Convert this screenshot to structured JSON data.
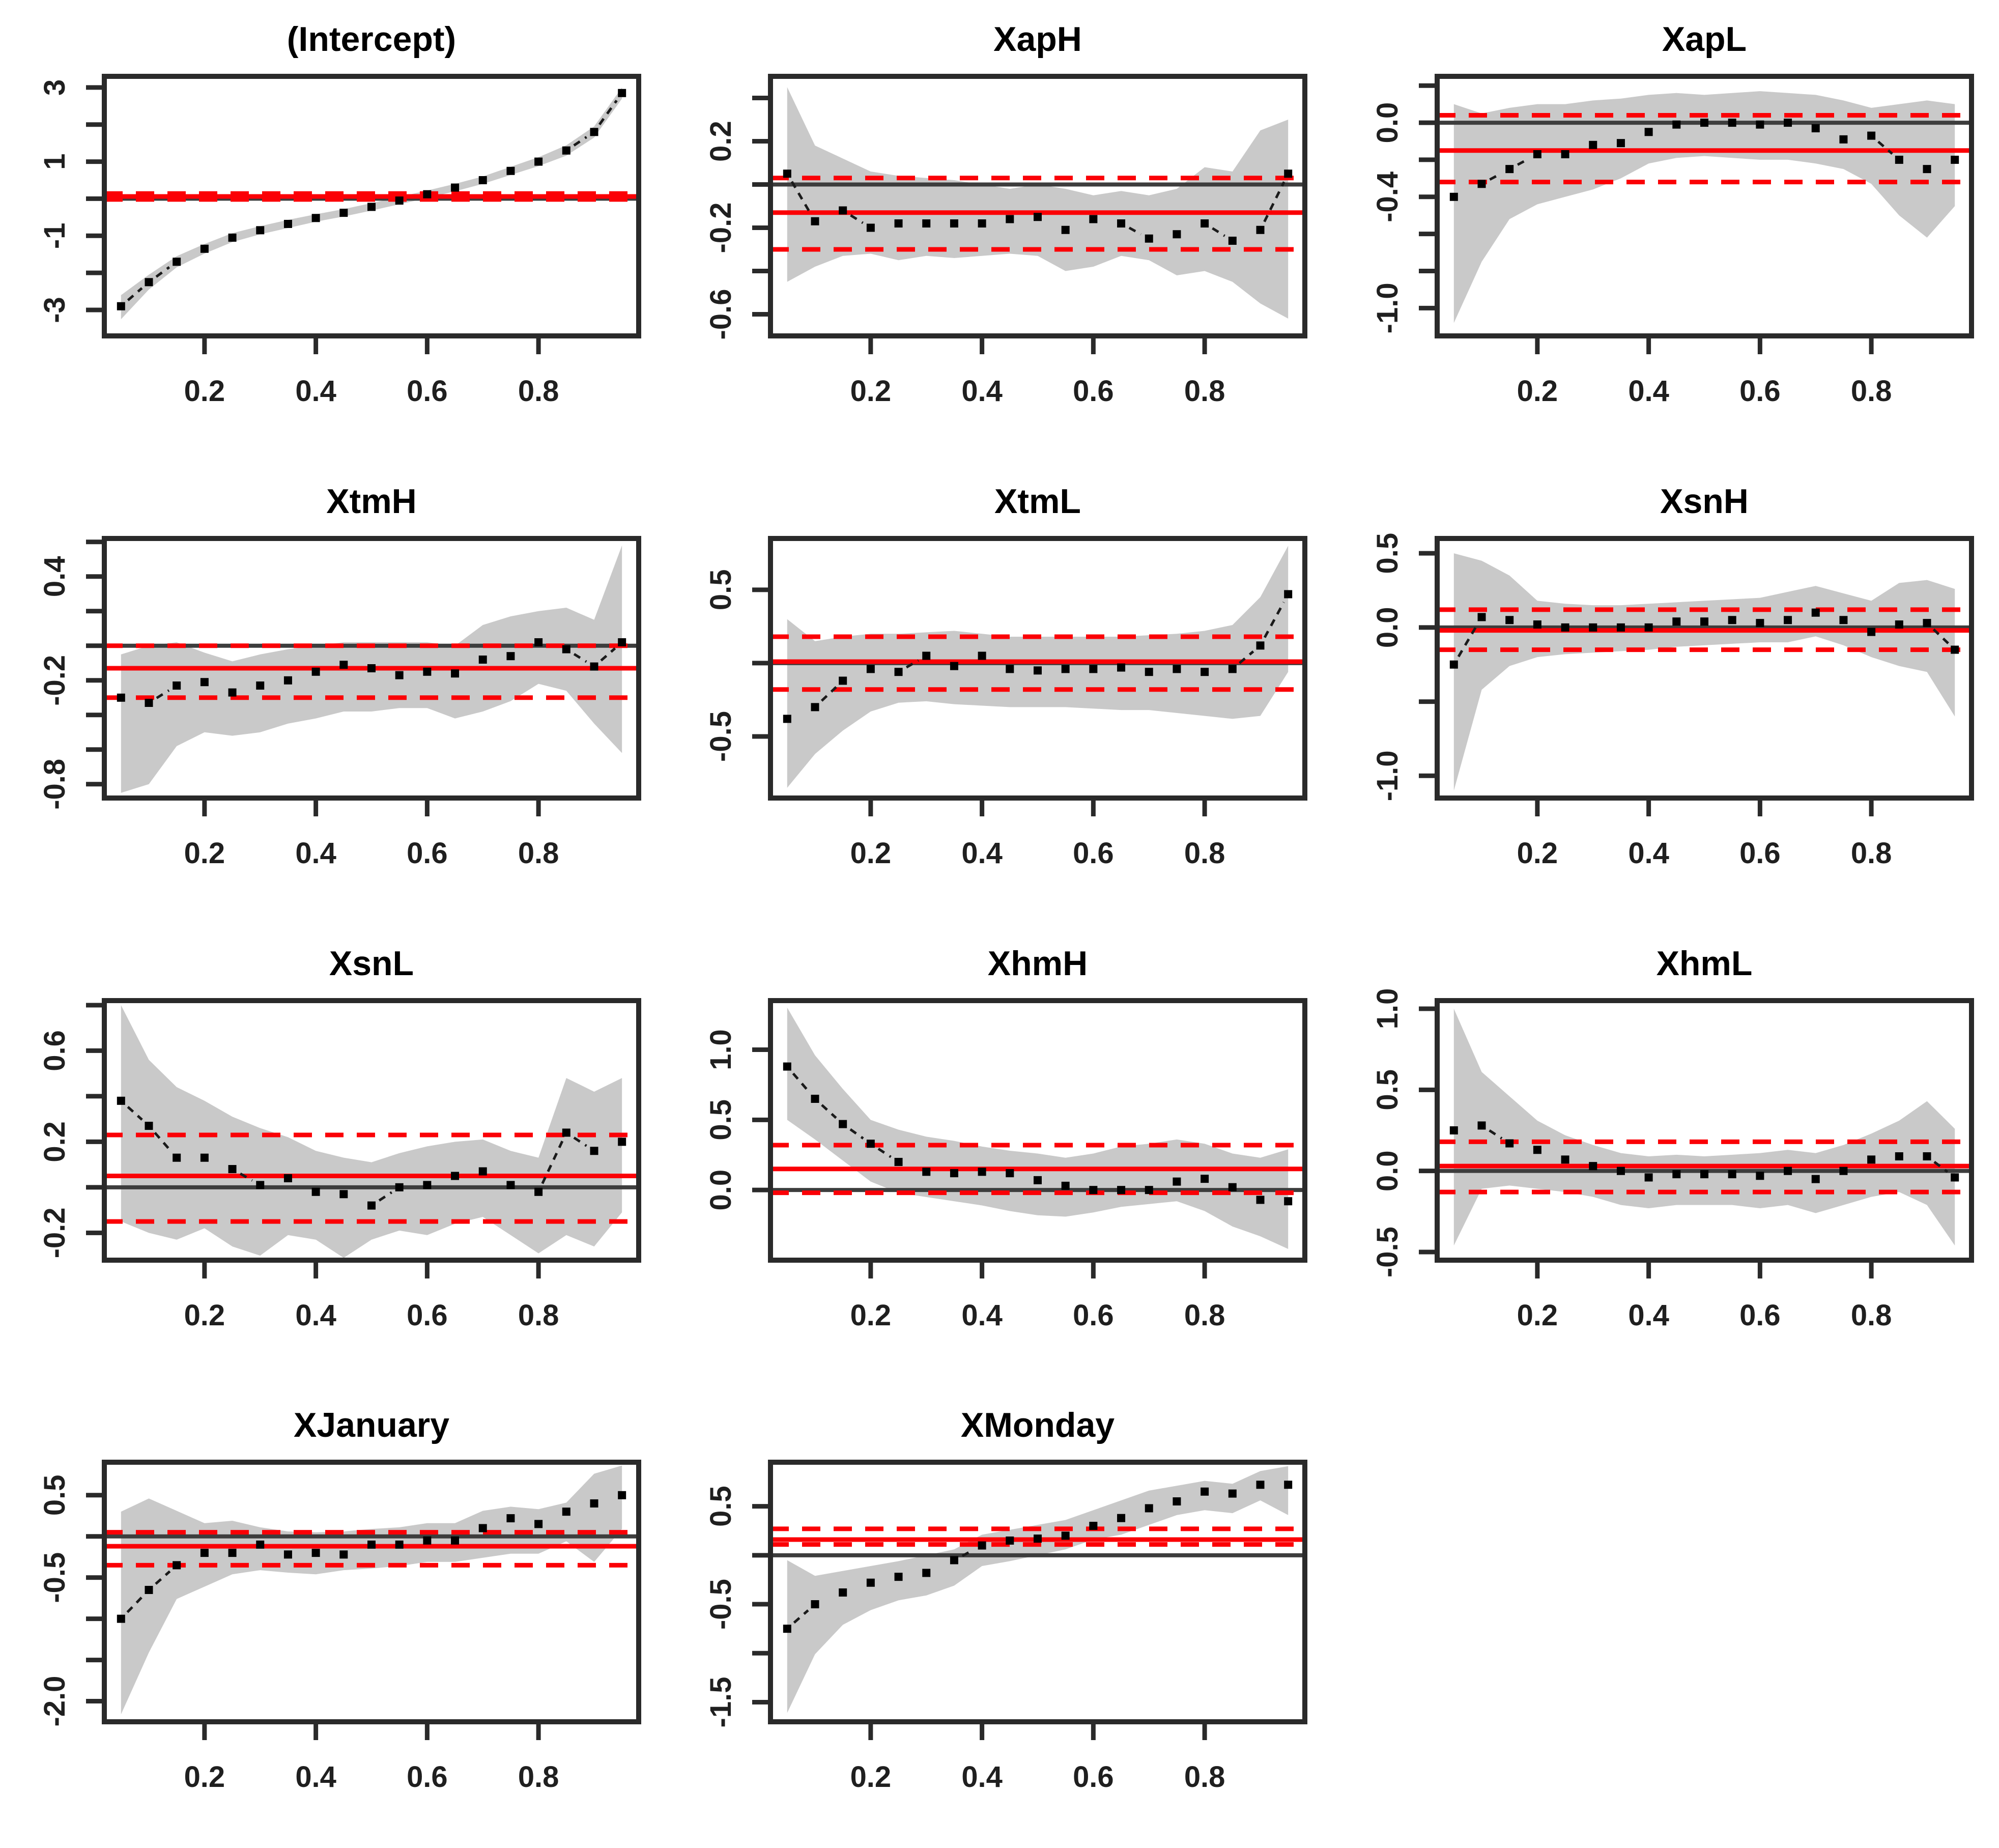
{
  "figure": {
    "kind": "quantile regression coefficient plots (R quantreg style)",
    "rows": 4,
    "cols": 3,
    "background": "#ffffff"
  },
  "styles": {
    "band_color": "#c9c9c9",
    "point_color": "#000000",
    "connector_color": "#1a1a1a",
    "ols_color": "#fb0006",
    "ci_color": "#fb0006",
    "zero_line_color": "#3d3d3d",
    "box_color": "#2a2a2a",
    "tick_color": "#2a2a2a",
    "label_color": "#1f1f1f",
    "title_color": "#000000"
  },
  "chart_data": {
    "type": "line",
    "description": "Grid of 11 quantile-regression coefficient estimate panels. Black square points = coefficient at each quantile tau (dashed black connector), gray polygon = confidence band, solid red = OLS estimate, dashed red = OLS confidence interval, dark gray line = zero reference.",
    "tau": [
      0.05,
      0.1,
      0.15,
      0.2,
      0.25,
      0.3,
      0.35,
      0.4,
      0.45,
      0.5,
      0.55,
      0.6,
      0.65,
      0.7,
      0.75,
      0.8,
      0.85,
      0.9,
      0.95
    ],
    "xlim": [
      0.02,
      0.98
    ],
    "x_ticks": [
      0.2,
      0.4,
      0.6,
      0.8
    ],
    "x_tick_labels": [
      "0.2",
      "0.4",
      "0.6",
      "0.8"
    ],
    "panels": [
      {
        "title": "(Intercept)",
        "ylim": [
          -3.7,
          3.3
        ],
        "y_ticks": [
          3,
          2,
          1,
          0,
          -1,
          -2,
          -3
        ],
        "y_labels": [
          {
            "v": 3,
            "t": "3"
          },
          {
            "v": 1,
            "t": "1"
          },
          {
            "v": -1,
            "t": "-1"
          },
          {
            "v": -3,
            "t": "-3"
          }
        ],
        "coef": [
          -2.9,
          -2.25,
          -1.7,
          -1.35,
          -1.05,
          -0.85,
          -0.68,
          -0.52,
          -0.38,
          -0.22,
          -0.05,
          0.12,
          0.3,
          0.5,
          0.75,
          1.0,
          1.3,
          1.8,
          2.85
        ],
        "band_upper": [
          -2.6,
          -2.05,
          -1.55,
          -1.22,
          -0.93,
          -0.74,
          -0.57,
          -0.42,
          -0.28,
          -0.12,
          0.05,
          0.22,
          0.4,
          0.6,
          0.86,
          1.12,
          1.44,
          1.95,
          3.0
        ],
        "band_lower": [
          -3.25,
          -2.45,
          -1.85,
          -1.48,
          -1.17,
          -0.96,
          -0.79,
          -0.62,
          -0.48,
          -0.32,
          -0.15,
          0.02,
          0.2,
          0.4,
          0.64,
          0.88,
          1.16,
          1.65,
          2.7
        ],
        "ols": 0.06,
        "ols_ci": [
          -0.02,
          0.14
        ],
        "zero": 0
      },
      {
        "title": "XapH",
        "ylim": [
          -0.7,
          0.5
        ],
        "y_ticks": [
          0.4,
          0.2,
          0,
          -0.2,
          -0.4,
          -0.6
        ],
        "y_labels": [
          {
            "v": 0.2,
            "t": "0.2"
          },
          {
            "v": -0.2,
            "t": "-0.2"
          },
          {
            "v": -0.6,
            "t": "-0.6"
          }
        ],
        "coef": [
          0.05,
          -0.17,
          -0.12,
          -0.2,
          -0.18,
          -0.18,
          -0.18,
          -0.18,
          -0.16,
          -0.15,
          -0.21,
          -0.16,
          -0.18,
          -0.25,
          -0.23,
          -0.18,
          -0.26,
          -0.21,
          0.05
        ],
        "band_upper": [
          0.45,
          0.18,
          0.12,
          0.06,
          0.04,
          0.03,
          0.02,
          0.0,
          -0.02,
          0.0,
          -0.02,
          -0.05,
          -0.03,
          -0.05,
          -0.02,
          0.08,
          0.06,
          0.25,
          0.3
        ],
        "band_lower": [
          -0.45,
          -0.38,
          -0.33,
          -0.32,
          -0.35,
          -0.33,
          -0.34,
          -0.33,
          -0.32,
          -0.33,
          -0.4,
          -0.38,
          -0.33,
          -0.35,
          -0.42,
          -0.4,
          -0.45,
          -0.55,
          -0.62
        ],
        "ols": -0.13,
        "ols_ci": [
          -0.3,
          0.03
        ],
        "zero": 0
      },
      {
        "title": "XapL",
        "ylim": [
          -1.15,
          0.25
        ],
        "y_ticks": [
          0.2,
          0,
          -0.2,
          -0.4,
          -0.6,
          -0.8,
          -1.0
        ],
        "y_labels": [
          {
            "v": 0,
            "t": "0.0"
          },
          {
            "v": -0.4,
            "t": "-0.4"
          },
          {
            "v": -1.0,
            "t": "-1.0"
          }
        ],
        "coef": [
          -0.4,
          -0.33,
          -0.25,
          -0.17,
          -0.17,
          -0.12,
          -0.11,
          -0.05,
          -0.01,
          0.0,
          0.0,
          -0.01,
          0.0,
          -0.03,
          -0.09,
          -0.07,
          -0.2,
          -0.25,
          -0.2
        ],
        "band_upper": [
          0.1,
          0.05,
          0.08,
          0.1,
          0.1,
          0.12,
          0.13,
          0.15,
          0.16,
          0.15,
          0.16,
          0.17,
          0.16,
          0.15,
          0.12,
          0.08,
          0.1,
          0.12,
          0.1
        ],
        "band_lower": [
          -1.08,
          -0.75,
          -0.52,
          -0.44,
          -0.4,
          -0.36,
          -0.3,
          -0.22,
          -0.19,
          -0.18,
          -0.19,
          -0.2,
          -0.2,
          -0.22,
          -0.25,
          -0.33,
          -0.5,
          -0.62,
          -0.45
        ],
        "ols": -0.15,
        "ols_ci": [
          -0.32,
          0.04
        ],
        "zero": 0
      },
      {
        "title": "XtmH",
        "ylim": [
          -0.88,
          0.62
        ],
        "y_ticks": [
          0.6,
          0.4,
          0.2,
          0,
          -0.2,
          -0.4,
          -0.6,
          -0.8
        ],
        "y_labels": [
          {
            "v": 0.4,
            "t": "0.4"
          },
          {
            "v": -0.2,
            "t": "-0.2"
          },
          {
            "v": -0.8,
            "t": "-0.8"
          }
        ],
        "coef": [
          -0.3,
          -0.33,
          -0.23,
          -0.21,
          -0.27,
          -0.23,
          -0.2,
          -0.15,
          -0.11,
          -0.13,
          -0.17,
          -0.15,
          -0.16,
          -0.08,
          -0.06,
          0.02,
          -0.02,
          -0.12,
          0.02
        ],
        "band_upper": [
          -0.05,
          0.0,
          0.02,
          -0.04,
          -0.09,
          -0.05,
          -0.02,
          0.0,
          0.02,
          0.02,
          0.02,
          0.02,
          0.0,
          0.12,
          0.17,
          0.2,
          0.22,
          0.15,
          0.58
        ],
        "band_lower": [
          -0.85,
          -0.8,
          -0.58,
          -0.5,
          -0.52,
          -0.5,
          -0.45,
          -0.42,
          -0.38,
          -0.38,
          -0.36,
          -0.36,
          -0.42,
          -0.38,
          -0.32,
          -0.22,
          -0.26,
          -0.45,
          -0.62
        ],
        "ols": -0.13,
        "ols_ci": [
          -0.3,
          0.0
        ],
        "zero": 0
      },
      {
        "title": "XtmL",
        "ylim": [
          -0.92,
          0.85
        ],
        "y_ticks": [
          0.5,
          0,
          -0.5
        ],
        "y_labels": [
          {
            "v": 0.5,
            "t": "0.5"
          },
          {
            "v": -0.5,
            "t": "-0.5"
          }
        ],
        "coef": [
          -0.38,
          -0.3,
          -0.12,
          -0.04,
          -0.06,
          0.05,
          -0.02,
          0.05,
          -0.04,
          -0.05,
          -0.04,
          -0.04,
          -0.03,
          -0.06,
          -0.04,
          -0.06,
          -0.04,
          0.12,
          0.47
        ],
        "band_upper": [
          0.3,
          0.15,
          0.18,
          0.2,
          0.2,
          0.21,
          0.22,
          0.2,
          0.18,
          0.18,
          0.18,
          0.18,
          0.18,
          0.19,
          0.2,
          0.22,
          0.26,
          0.45,
          0.8
        ],
        "band_lower": [
          -0.85,
          -0.62,
          -0.46,
          -0.33,
          -0.27,
          -0.26,
          -0.28,
          -0.29,
          -0.3,
          -0.3,
          -0.3,
          -0.31,
          -0.32,
          -0.32,
          -0.34,
          -0.36,
          -0.38,
          -0.36,
          -0.06
        ],
        "ols": 0.01,
        "ols_ci": [
          -0.18,
          0.18
        ],
        "zero": 0
      },
      {
        "title": "XsnH",
        "ylim": [
          -1.15,
          0.6
        ],
        "y_ticks": [
          0.5,
          0,
          -0.5,
          -1.0
        ],
        "y_labels": [
          {
            "v": 0.5,
            "t": "0.5"
          },
          {
            "v": 0,
            "t": "0.0"
          },
          {
            "v": -1.0,
            "t": "-1.0"
          }
        ],
        "coef": [
          -0.25,
          0.07,
          0.05,
          0.02,
          0.0,
          0.0,
          0.0,
          0.0,
          0.04,
          0.04,
          0.05,
          0.03,
          0.05,
          0.1,
          0.05,
          -0.03,
          0.02,
          0.03,
          -0.15
        ],
        "band_upper": [
          0.5,
          0.45,
          0.35,
          0.18,
          0.16,
          0.15,
          0.15,
          0.16,
          0.17,
          0.18,
          0.19,
          0.2,
          0.24,
          0.28,
          0.23,
          0.18,
          0.3,
          0.32,
          0.26
        ],
        "band_lower": [
          -1.1,
          -0.42,
          -0.26,
          -0.2,
          -0.18,
          -0.17,
          -0.16,
          -0.15,
          -0.13,
          -0.12,
          -0.11,
          -0.1,
          -0.1,
          -0.06,
          -0.12,
          -0.2,
          -0.26,
          -0.3,
          -0.6
        ],
        "ols": -0.02,
        "ols_ci": [
          -0.15,
          0.12
        ],
        "zero": 0
      },
      {
        "title": "XsnL",
        "ylim": [
          -0.32,
          0.82
        ],
        "y_ticks": [
          0.8,
          0.6,
          0.4,
          0.2,
          0,
          -0.2
        ],
        "y_labels": [
          {
            "v": 0.6,
            "t": "0.6"
          },
          {
            "v": 0.2,
            "t": "0.2"
          },
          {
            "v": -0.2,
            "t": "-0.2"
          }
        ],
        "coef": [
          0.38,
          0.27,
          0.13,
          0.13,
          0.08,
          0.01,
          0.04,
          -0.02,
          -0.03,
          -0.08,
          0.0,
          0.01,
          0.05,
          0.07,
          0.01,
          -0.02,
          0.24,
          0.16,
          0.2
        ],
        "band_upper": [
          0.8,
          0.56,
          0.44,
          0.38,
          0.31,
          0.26,
          0.22,
          0.16,
          0.13,
          0.11,
          0.15,
          0.18,
          0.2,
          0.21,
          0.16,
          0.13,
          0.48,
          0.42,
          0.48
        ],
        "band_lower": [
          -0.15,
          -0.2,
          -0.23,
          -0.18,
          -0.26,
          -0.3,
          -0.21,
          -0.23,
          -0.31,
          -0.23,
          -0.19,
          -0.21,
          -0.16,
          -0.13,
          -0.21,
          -0.29,
          -0.21,
          -0.26,
          -0.11
        ],
        "ols": 0.05,
        "ols_ci": [
          -0.15,
          0.23
        ],
        "zero": 0
      },
      {
        "title": "XhmH",
        "ylim": [
          -0.5,
          1.35
        ],
        "y_ticks": [
          1.0,
          0.5,
          0
        ],
        "y_labels": [
          {
            "v": 1.0,
            "t": "1.0"
          },
          {
            "v": 0.5,
            "t": "0.5"
          },
          {
            "v": 0,
            "t": "0.0"
          }
        ],
        "coef": [
          0.88,
          0.65,
          0.47,
          0.33,
          0.2,
          0.13,
          0.12,
          0.13,
          0.12,
          0.07,
          0.03,
          0.0,
          0.0,
          0.0,
          0.06,
          0.08,
          0.02,
          -0.07,
          -0.08
        ],
        "band_upper": [
          1.3,
          0.96,
          0.72,
          0.5,
          0.43,
          0.38,
          0.35,
          0.31,
          0.28,
          0.26,
          0.23,
          0.26,
          0.31,
          0.33,
          0.36,
          0.33,
          0.26,
          0.23,
          0.29
        ],
        "band_lower": [
          0.5,
          0.36,
          0.21,
          0.06,
          -0.02,
          -0.05,
          -0.08,
          -0.11,
          -0.15,
          -0.18,
          -0.19,
          -0.16,
          -0.12,
          -0.1,
          -0.08,
          -0.15,
          -0.26,
          -0.33,
          -0.42
        ],
        "ols": 0.15,
        "ols_ci": [
          -0.02,
          0.32
        ],
        "zero": 0
      },
      {
        "title": "XhmL",
        "ylim": [
          -0.55,
          1.05
        ],
        "y_ticks": [
          1.0,
          0.5,
          0,
          -0.5
        ],
        "y_labels": [
          {
            "v": 1.0,
            "t": "1.0"
          },
          {
            "v": 0.5,
            "t": "0.5"
          },
          {
            "v": 0,
            "t": "0.0"
          },
          {
            "v": -0.5,
            "t": "-0.5"
          }
        ],
        "coef": [
          0.25,
          0.28,
          0.17,
          0.13,
          0.07,
          0.03,
          0.0,
          -0.04,
          -0.02,
          -0.02,
          -0.02,
          -0.03,
          0.0,
          -0.05,
          0.0,
          0.07,
          0.09,
          0.09,
          -0.04
        ],
        "band_upper": [
          1.0,
          0.61,
          0.46,
          0.31,
          0.22,
          0.16,
          0.11,
          0.09,
          0.1,
          0.09,
          0.1,
          0.11,
          0.13,
          0.11,
          0.16,
          0.23,
          0.31,
          0.43,
          0.26
        ],
        "band_lower": [
          -0.46,
          -0.11,
          -0.09,
          -0.11,
          -0.13,
          -0.16,
          -0.21,
          -0.23,
          -0.21,
          -0.21,
          -0.21,
          -0.23,
          -0.21,
          -0.26,
          -0.21,
          -0.16,
          -0.13,
          -0.21,
          -0.46
        ],
        "ols": 0.03,
        "ols_ci": [
          -0.13,
          0.18
        ],
        "zero": 0
      },
      {
        "title": "XJanuary",
        "ylim": [
          -2.25,
          0.9
        ],
        "y_ticks": [
          0.5,
          0,
          -0.5,
          -1.0,
          -1.5,
          -2.0
        ],
        "y_labels": [
          {
            "v": 0.5,
            "t": "0.5"
          },
          {
            "v": -0.5,
            "t": "-0.5"
          },
          {
            "v": -2.0,
            "t": "-2.0"
          }
        ],
        "coef": [
          -1.0,
          -0.65,
          -0.35,
          -0.2,
          -0.2,
          -0.1,
          -0.22,
          -0.2,
          -0.22,
          -0.1,
          -0.1,
          -0.05,
          -0.05,
          0.1,
          0.22,
          0.15,
          0.3,
          0.4,
          0.5
        ],
        "band_upper": [
          0.3,
          0.46,
          0.31,
          0.16,
          0.19,
          0.11,
          0.06,
          0.05,
          0.06,
          0.09,
          0.11,
          0.16,
          0.16,
          0.31,
          0.36,
          0.33,
          0.41,
          0.76,
          0.86
        ],
        "band_lower": [
          -2.16,
          -1.41,
          -0.76,
          -0.61,
          -0.46,
          -0.41,
          -0.44,
          -0.46,
          -0.41,
          -0.39,
          -0.36,
          -0.31,
          -0.31,
          -0.26,
          -0.21,
          -0.21,
          -0.06,
          -0.31,
          0.09
        ],
        "ols": -0.12,
        "ols_ci": [
          -0.35,
          0.05
        ],
        "zero": 0
      },
      {
        "title": "XMonday",
        "ylim": [
          -1.7,
          0.95
        ],
        "y_ticks": [
          0.5,
          0,
          -0.5,
          -1.0,
          -1.5
        ],
        "y_labels": [
          {
            "v": 0.5,
            "t": "0.5"
          },
          {
            "v": -0.5,
            "t": "-0.5"
          },
          {
            "v": -1.5,
            "t": "-1.5"
          }
        ],
        "coef": [
          -0.75,
          -0.5,
          -0.38,
          -0.28,
          -0.22,
          -0.18,
          -0.05,
          0.1,
          0.15,
          0.17,
          0.2,
          0.3,
          0.38,
          0.48,
          0.55,
          0.65,
          0.63,
          0.72,
          0.72
        ],
        "band_upper": [
          -0.05,
          -0.21,
          -0.16,
          -0.11,
          -0.06,
          0.0,
          0.06,
          0.21,
          0.26,
          0.31,
          0.36,
          0.46,
          0.56,
          0.66,
          0.71,
          0.76,
          0.73,
          0.86,
          0.91
        ],
        "band_lower": [
          -1.61,
          -1.01,
          -0.71,
          -0.56,
          -0.46,
          -0.41,
          -0.31,
          -0.11,
          -0.06,
          0.0,
          0.06,
          0.16,
          0.21,
          0.31,
          0.41,
          0.46,
          0.43,
          0.56,
          0.41
        ],
        "ols": 0.16,
        "ols_ci": [
          0.11,
          0.27
        ],
        "zero": 0
      }
    ]
  }
}
